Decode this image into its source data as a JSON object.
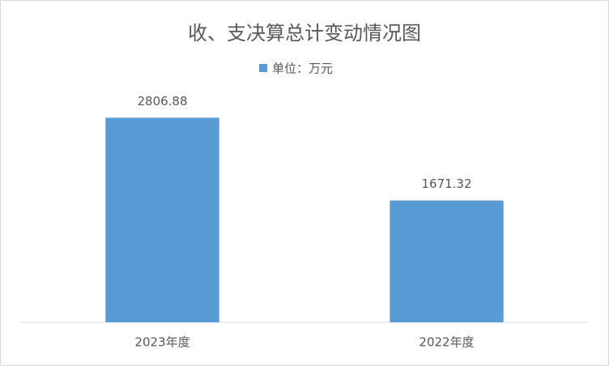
{
  "chart_data": {
    "type": "bar",
    "title": "收、支决算总计变动情况图",
    "categories": [
      "2023年度",
      "2022年度"
    ],
    "series": [
      {
        "name": "单位：万元",
        "color": "#5b9bd5",
        "values": [
          2806.88,
          1671.32
        ]
      }
    ],
    "ylim": [
      0,
      3000
    ],
    "grid": false
  }
}
